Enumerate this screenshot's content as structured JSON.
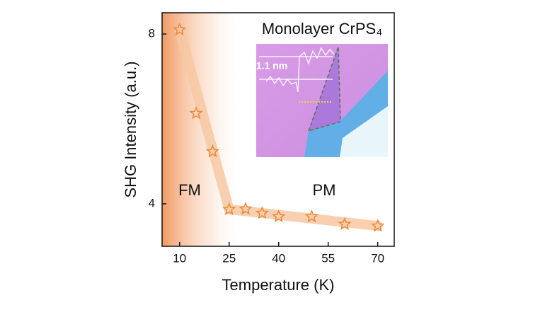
{
  "chart_data": {
    "type": "scatter",
    "title": "Monolayer CrPS₄",
    "x_label": "Temperature (K)",
    "y_label": "SHG Intensity (a.u.)",
    "x": [
      10,
      15,
      20,
      25,
      30,
      35,
      40,
      50,
      60,
      70
    ],
    "values": [
      8.1,
      6.13,
      5.23,
      3.87,
      3.88,
      3.78,
      3.7,
      3.7,
      3.52,
      3.48
    ],
    "color": "#f08a3a",
    "xlim": [
      4.7,
      75
    ],
    "xticks": [
      10,
      25,
      40,
      55,
      70
    ],
    "ylim": [
      3.0,
      8.5
    ],
    "yticks": [
      4,
      8
    ],
    "annotations": [
      "FM",
      "PM",
      "1.1 nm"
    ]
  }
}
